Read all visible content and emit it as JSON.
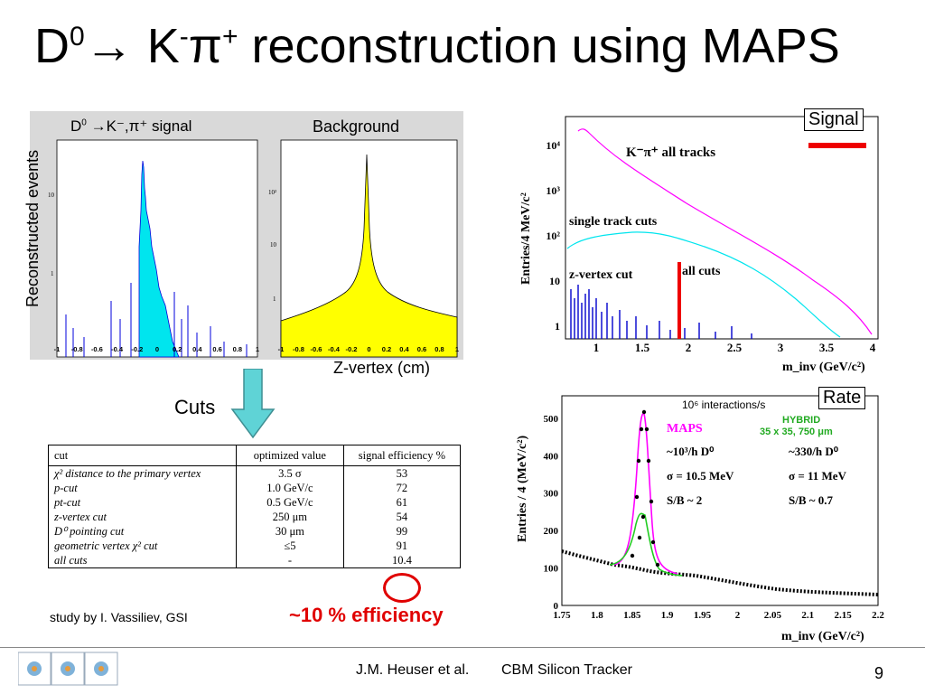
{
  "title": {
    "D": "D",
    "sup0": "0",
    "arrow": "→ K",
    "supminus": "-",
    "pi": "π",
    "supplus": "+",
    "rest": " reconstruction using MAPS"
  },
  "left_panel": {
    "ylabel": "Reconstructed events",
    "signal_title_pre": "D",
    "signal_title_sup": "0",
    "signal_title_post": " →K⁻,π⁺ signal",
    "background_title": "Background",
    "xlabel": "Z-vertex (cm)",
    "xticks": [
      "-1",
      "-0.8",
      "-0.6",
      "-0.4",
      "-0.2",
      "0",
      "0.2",
      "0.4",
      "0.6",
      "0.8",
      "1"
    ]
  },
  "cuts_label": "Cuts",
  "cuts_table": {
    "headers": [
      "cut",
      "optimized value",
      "signal efficiency %"
    ],
    "rows": [
      [
        "χ² distance to the primary vertex",
        "3.5 σ",
        "53"
      ],
      [
        "p-cut",
        "1.0 GeV/c",
        "72"
      ],
      [
        "pt-cut",
        "0.5 GeV/c",
        "61"
      ],
      [
        "z-vertex cut",
        "250 μm",
        "54"
      ],
      [
        "D⁰ pointing cut",
        "30 μm",
        "99"
      ],
      [
        "geometric vertex χ² cut",
        "≤5",
        "91"
      ],
      [
        "all cuts",
        "-",
        "10.4"
      ]
    ]
  },
  "study_by": "study by  I. Vassiliev, GSI",
  "efficiency_note": "~10 % efficiency",
  "chart_data": [
    {
      "type": "line",
      "badge": "Signal",
      "ylabel": "Entries/4 MeV/c²",
      "xlabel": "m_inv (GeV/c²)",
      "xticks": [
        "1",
        "1.5",
        "2",
        "2.5",
        "3",
        "3.5",
        "4"
      ],
      "yticks": [
        "1",
        "10",
        "10²",
        "10³",
        "10⁴"
      ],
      "y_log": true,
      "series": [
        {
          "name": "K⁻π⁺ all tracks",
          "color": "#ff00ff"
        },
        {
          "name": "single track cuts",
          "color": "#00e5ee"
        },
        {
          "name": "z-vertex cut",
          "color": "#0000cc"
        },
        {
          "name": "all cuts",
          "color": "#ee0000"
        }
      ]
    },
    {
      "type": "line",
      "badge": "Rate",
      "annotation": "10⁶ interactions/s",
      "ylabel": "Entries / 4 (MeV/c²)",
      "xlabel": "m_inv (GeV/c²)",
      "xticks": [
        "1.75",
        "1.8",
        "1.85",
        "1.9",
        "1.95",
        "2",
        "2.05",
        "2.1",
        "2.15",
        "2.2"
      ],
      "yticks": [
        "0",
        "100",
        "200",
        "300",
        "400",
        "500"
      ],
      "xlim": [
        1.75,
        2.2
      ],
      "ylim": [
        0,
        560
      ],
      "maps": {
        "label": "MAPS",
        "rate": "~10³/h D⁰",
        "sigma": "σ = 10.5 MeV",
        "sb": "S/B ~ 2"
      },
      "hybrid": {
        "label": "HYBRID",
        "pixel": "35 x 35, 750 μm",
        "rate": "~330/h D⁰",
        "sigma": "σ = 11 MeV",
        "sb": "S/B ~ 0.7"
      }
    }
  ],
  "footer": {
    "author": "J.M. Heuser et al.",
    "title": "CBM Silicon Tracker",
    "page": "9"
  }
}
